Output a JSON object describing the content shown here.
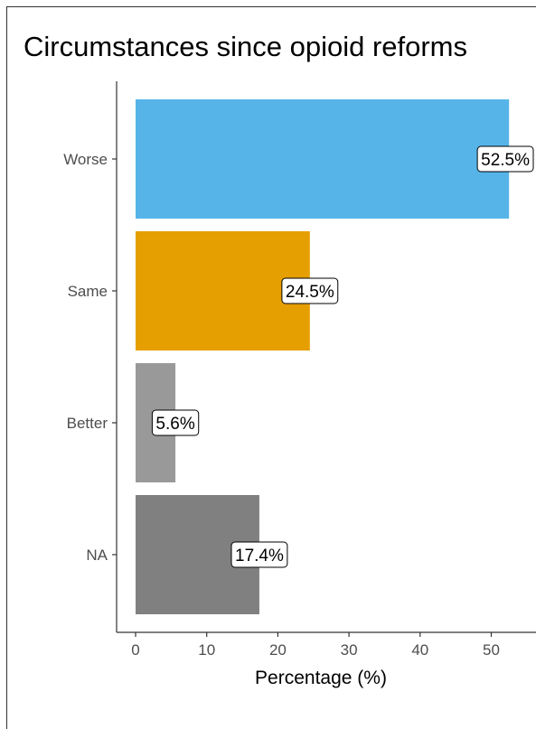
{
  "chart_data": {
    "type": "bar",
    "orientation": "horizontal",
    "title": "Circumstances since opioid reforms",
    "xlabel": "Percentage (%)",
    "ylabel": "",
    "categories": [
      "Worse",
      "Same",
      "Better",
      "NA"
    ],
    "values": [
      52.5,
      24.5,
      5.6,
      17.4
    ],
    "data_labels": [
      "52.5%",
      "24.5%",
      "5.6%",
      "17.4%"
    ],
    "colors": [
      "#56B4E9",
      "#E69F00",
      "#999999",
      "#808080"
    ],
    "xlim": [
      -2.5,
      55
    ],
    "xticks": [
      0,
      10,
      20,
      30,
      40,
      50
    ],
    "grid": false,
    "legend": "none"
  }
}
